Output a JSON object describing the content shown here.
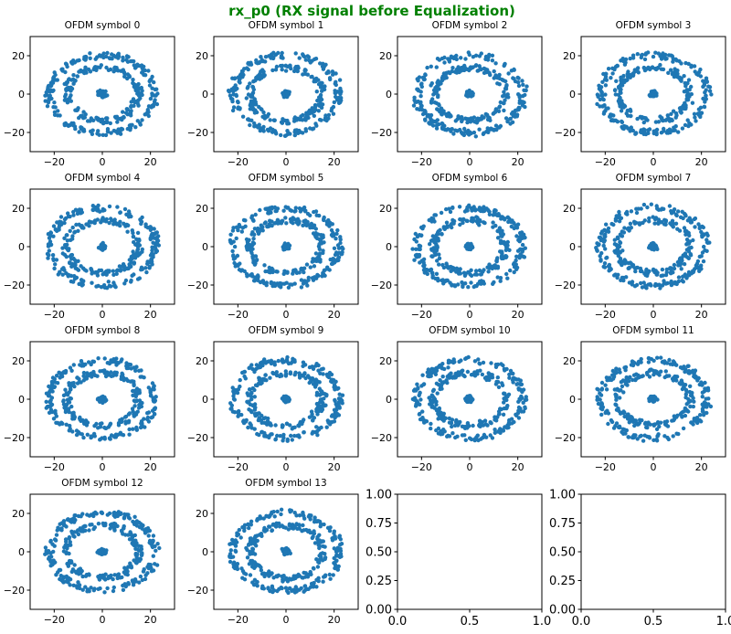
{
  "suptitle": "rx_p0 (RX signal before Equalization)",
  "chart_data": {
    "type": "scatter",
    "title": "rx_p0 (RX signal before Equalization)",
    "layout": {
      "rows": 4,
      "cols": 4
    },
    "marker_color": "#1f77b4",
    "title_color": "#008000",
    "x_ticks": [
      -20,
      0,
      20
    ],
    "y_ticks": [
      -20,
      0,
      20
    ],
    "xlim": [
      -30,
      30
    ],
    "ylim": [
      -30,
      30
    ],
    "empty_axes_ticks": [
      "0.00",
      "0.25",
      "0.50",
      "0.75",
      "1.00"
    ],
    "empty_axes_x_ticks": [
      "0.0",
      "0.5",
      "1.0"
    ],
    "clusters": [
      {
        "name": "center",
        "radius": 0
      },
      {
        "name": "inner ring",
        "radius": 15
      },
      {
        "name": "outer ring",
        "radius": 22
      }
    ],
    "panels": [
      {
        "title": "OFDM symbol 0"
      },
      {
        "title": "OFDM symbol 1"
      },
      {
        "title": "OFDM symbol 2"
      },
      {
        "title": "OFDM symbol 3"
      },
      {
        "title": "OFDM symbol 4"
      },
      {
        "title": "OFDM symbol 5"
      },
      {
        "title": "OFDM symbol 6"
      },
      {
        "title": "OFDM symbol 7"
      },
      {
        "title": "OFDM symbol 8"
      },
      {
        "title": "OFDM symbol 9"
      },
      {
        "title": "OFDM symbol 10"
      },
      {
        "title": "OFDM symbol 11"
      },
      {
        "title": "OFDM symbol 12"
      },
      {
        "title": "OFDM symbol 13"
      }
    ],
    "empty_panels": 2
  }
}
